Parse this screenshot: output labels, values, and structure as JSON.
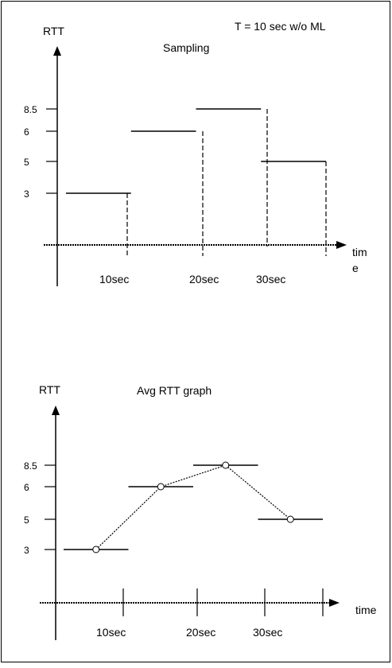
{
  "header": {
    "top_right": "T = 10 sec w/o ML"
  },
  "sampling_panel": {
    "y_axis_label": "RTT",
    "title": "Sampling",
    "x_axis_label_line1": "tim",
    "x_axis_label_line2": "e",
    "y_ticks": [
      "8.5",
      "6",
      "5",
      "3"
    ],
    "x_ticks": [
      "10sec",
      "20sec",
      "30sec"
    ]
  },
  "avg_panel": {
    "y_axis_label": "RTT",
    "title": "Avg RTT graph",
    "x_axis_label": "time",
    "y_ticks": [
      "8.5",
      "6",
      "5",
      "3"
    ],
    "x_ticks": [
      "10sec",
      "20sec",
      "30sec"
    ]
  },
  "chart_data": [
    {
      "type": "step",
      "title": "Sampling",
      "ylabel": "RTT",
      "xlabel": "time",
      "y_tick_values": [
        8.5,
        6,
        5,
        3
      ],
      "segments": [
        {
          "x_start": 0,
          "x_end": 10,
          "value": 3
        },
        {
          "x_start": 10,
          "x_end": 20,
          "value": 6
        },
        {
          "x_start": 20,
          "x_end": 30,
          "value": 8.5
        },
        {
          "x_start": 30,
          "x_end": 40,
          "value": 5
        }
      ]
    },
    {
      "type": "line",
      "title": "Avg RTT graph",
      "ylabel": "RTT",
      "xlabel": "time",
      "y_tick_values": [
        8.5,
        6,
        5,
        3
      ],
      "segments": [
        {
          "x_start": 0,
          "x_end": 10,
          "value": 3
        },
        {
          "x_start": 10,
          "x_end": 20,
          "value": 6
        },
        {
          "x_start": 20,
          "x_end": 30,
          "value": 8.5
        },
        {
          "x_start": 30,
          "x_end": 40,
          "value": 5
        }
      ],
      "points": [
        {
          "x": 5,
          "y": 3
        },
        {
          "x": 15,
          "y": 6
        },
        {
          "x": 25,
          "y": 8.5
        },
        {
          "x": 35,
          "y": 5
        }
      ]
    }
  ]
}
